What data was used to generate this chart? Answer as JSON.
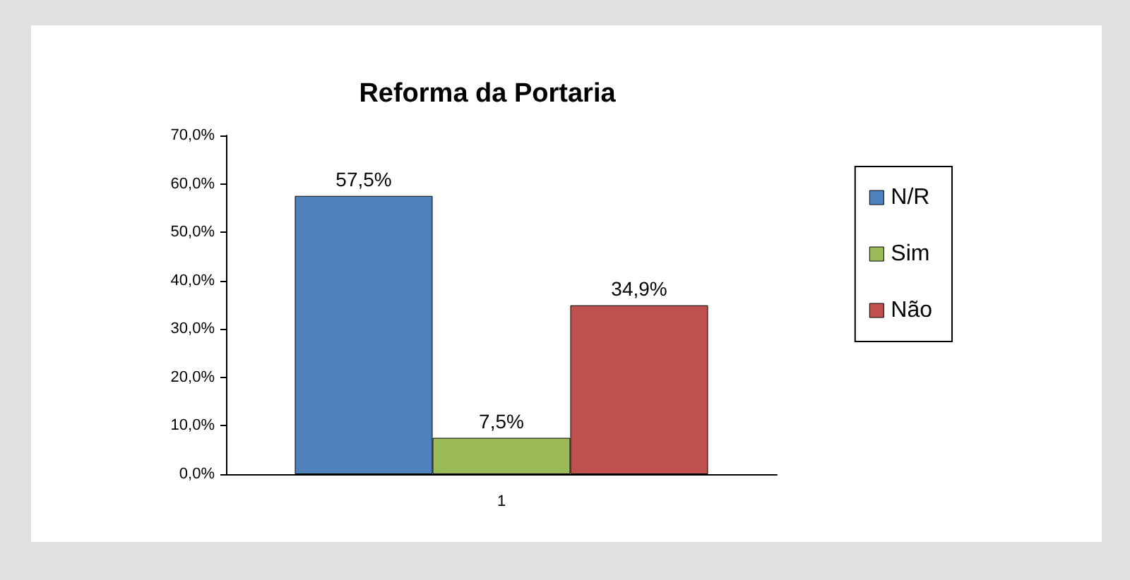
{
  "chart_data": {
    "type": "bar",
    "title": "Reforma da Portaria",
    "categories": [
      "1"
    ],
    "series": [
      {
        "name": "N/R",
        "color": "#4f81bd",
        "values": [
          57.5
        ],
        "value_labels": [
          "57,5%"
        ]
      },
      {
        "name": "Sim",
        "color": "#9bbb59",
        "values": [
          7.5
        ],
        "value_labels": [
          "7,5%"
        ]
      },
      {
        "name": "Não",
        "color": "#c0504d",
        "values": [
          34.9
        ],
        "value_labels": [
          "34,9%"
        ]
      }
    ],
    "ylim": [
      0,
      70
    ],
    "yticks": [
      {
        "value": 0,
        "label": "0,0%"
      },
      {
        "value": 10,
        "label": "10,0%"
      },
      {
        "value": 20,
        "label": "20,0%"
      },
      {
        "value": 30,
        "label": "30,0%"
      },
      {
        "value": 40,
        "label": "40,0%"
      },
      {
        "value": 50,
        "label": "50,0%"
      },
      {
        "value": 60,
        "label": "60,0%"
      },
      {
        "value": 70,
        "label": "70,0%"
      }
    ],
    "grid": false,
    "legend": "right"
  }
}
